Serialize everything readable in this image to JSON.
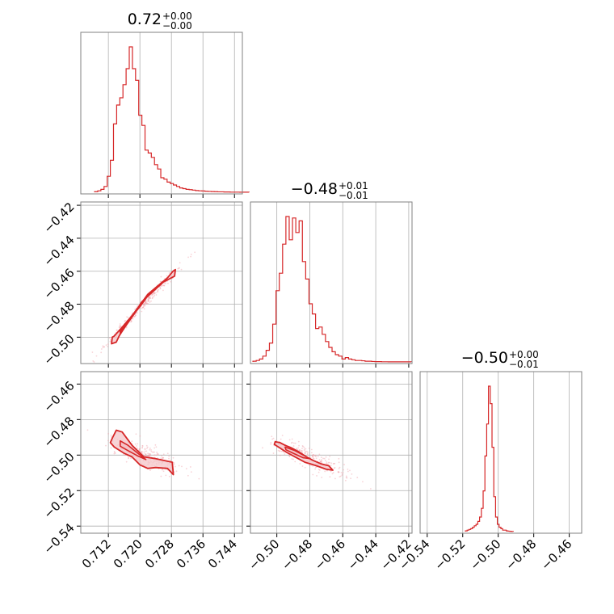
{
  "colors": {
    "accent": "#d62728",
    "fill": "#f4c4c8",
    "grid": "#b0b0b0",
    "frame": "#808080",
    "points": "#f0a0a8"
  },
  "chart_data": {
    "type": "corner",
    "grid": true,
    "parameters": [
      {
        "title_main": "0.72",
        "title_plus": "+0.00",
        "title_minus": "−0.00",
        "range": [
          0.705,
          0.746
        ],
        "ticks": [
          0.712,
          0.72,
          0.728,
          0.736,
          0.744
        ],
        "tick_labels": [
          "0.712",
          "0.720",
          "0.728",
          "0.736",
          "0.744"
        ]
      },
      {
        "title_main": "−0.48",
        "title_plus": "+0.01",
        "title_minus": "−0.01",
        "range": [
          -0.516,
          -0.418
        ],
        "ticks": [
          -0.5,
          -0.48,
          -0.46,
          -0.44,
          -0.42
        ],
        "tick_labels": [
          "−0.50",
          "−0.48",
          "−0.46",
          "−0.44",
          "−0.42"
        ]
      },
      {
        "title_main": "−0.50",
        "title_plus": "+0.00",
        "title_minus": "−0.01",
        "range": [
          -0.544,
          -0.453
        ],
        "ticks": [
          -0.54,
          -0.52,
          -0.5,
          -0.48,
          -0.46
        ],
        "tick_labels": [
          "−0.54",
          "−0.52",
          "−0.50",
          "−0.48",
          "−0.46"
        ]
      }
    ],
    "histograms": [
      {
        "param": 0,
        "bin_start": 0.7085,
        "bin_width": 0.0008,
        "counts": [
          0.4,
          1,
          2,
          4,
          11,
          22,
          47,
          60,
          65,
          74,
          85,
          100,
          85,
          77,
          53,
          46,
          29,
          27,
          24,
          19,
          16,
          10,
          9,
          7,
          6,
          5,
          4,
          3,
          2.5,
          2,
          1.8,
          1.5,
          1.2,
          1,
          0.9,
          0.7,
          0.6,
          0.5,
          0.4,
          0.3,
          0.3,
          0.2,
          0.2,
          0.1,
          0.1,
          0.1,
          0.05,
          0.05,
          0.05
        ]
      },
      {
        "param": 1,
        "bin_start": -0.5145,
        "bin_width": 0.002,
        "counts": [
          0.5,
          1,
          2,
          4,
          8,
          13,
          26,
          49,
          61,
          81,
          100,
          84,
          99,
          89,
          97,
          69,
          57,
          40,
          33,
          23,
          24,
          19,
          14,
          10,
          7,
          5,
          4,
          2,
          3,
          2,
          1.5,
          1,
          1,
          0.8,
          0.5,
          0.5,
          0.3,
          0.2,
          0.2,
          0.1,
          0.1,
          0.05,
          0.05,
          0.05,
          0.05,
          0.05,
          0.05,
          0.05
        ]
      },
      {
        "param": 2,
        "bin_start": -0.5185,
        "bin_width": 0.001,
        "counts": [
          0.5,
          1,
          1.5,
          2,
          3,
          4,
          5,
          7,
          10,
          16,
          28,
          52,
          74,
          100,
          88,
          58,
          24,
          10,
          5,
          3,
          2,
          1,
          1,
          0.5,
          0.3,
          0.2,
          0.1
        ]
      }
    ],
    "pair_panels": [
      {
        "x_param": 0,
        "y_param": 1,
        "outer_contour": [
          [
            0.7134,
            -0.4995
          ],
          [
            0.7155,
            -0.494
          ],
          [
            0.718,
            -0.487
          ],
          [
            0.72,
            -0.4805
          ],
          [
            0.722,
            -0.474
          ],
          [
            0.725,
            -0.468
          ],
          [
            0.727,
            -0.464
          ],
          [
            0.7284,
            -0.46
          ],
          [
            0.729,
            -0.459
          ],
          [
            0.7288,
            -0.463
          ],
          [
            0.726,
            -0.4665
          ],
          [
            0.723,
            -0.473
          ],
          [
            0.7205,
            -0.4785
          ],
          [
            0.7185,
            -0.486
          ],
          [
            0.7163,
            -0.4935
          ],
          [
            0.7148,
            -0.499
          ],
          [
            0.714,
            -0.503
          ],
          [
            0.7128,
            -0.504
          ],
          [
            0.713,
            -0.5
          ]
        ],
        "inner_contour": [
          [
            0.715,
            -0.496
          ],
          [
            0.717,
            -0.49
          ],
          [
            0.719,
            -0.484
          ],
          [
            0.7212,
            -0.477
          ],
          [
            0.723,
            -0.472
          ],
          [
            0.722,
            -0.475
          ],
          [
            0.72,
            -0.4815
          ],
          [
            0.7178,
            -0.488
          ],
          [
            0.716,
            -0.494
          ],
          [
            0.715,
            -0.4975
          ]
        ],
        "scatter_center": [
          0.719,
          -0.485
        ],
        "scatter_direction": [
          0.008,
          0.02
        ],
        "scatter_spread": 0.004
      },
      {
        "x_param": 0,
        "y_param": 2,
        "outer_contour": [
          [
            0.713,
            -0.4905
          ],
          [
            0.714,
            -0.486
          ],
          [
            0.7155,
            -0.487
          ],
          [
            0.718,
            -0.4945
          ],
          [
            0.721,
            -0.501
          ],
          [
            0.724,
            -0.502
          ],
          [
            0.7282,
            -0.504
          ],
          [
            0.7285,
            -0.511
          ],
          [
            0.727,
            -0.5075
          ],
          [
            0.724,
            -0.507
          ],
          [
            0.722,
            -0.5075
          ],
          [
            0.72,
            -0.5055
          ],
          [
            0.718,
            -0.501
          ],
          [
            0.716,
            -0.499
          ],
          [
            0.7135,
            -0.4955
          ],
          [
            0.7125,
            -0.493
          ]
        ],
        "inner_contour": [
          [
            0.715,
            -0.492
          ],
          [
            0.717,
            -0.4945
          ],
          [
            0.7195,
            -0.499
          ],
          [
            0.7215,
            -0.5025
          ],
          [
            0.7195,
            -0.5005
          ],
          [
            0.717,
            -0.4975
          ],
          [
            0.715,
            -0.495
          ]
        ],
        "scatter_center": [
          0.72,
          -0.499
        ],
        "scatter_direction": [
          0.008,
          -0.007
        ],
        "scatter_spread": 0.003
      },
      {
        "x_param": 1,
        "y_param": 2,
        "outer_contour": [
          [
            -0.501,
            -0.4925
          ],
          [
            -0.498,
            -0.493
          ],
          [
            -0.495,
            -0.4945
          ],
          [
            -0.491,
            -0.496
          ],
          [
            -0.487,
            -0.498
          ],
          [
            -0.482,
            -0.501
          ],
          [
            -0.478,
            -0.503
          ],
          [
            -0.473,
            -0.505
          ],
          [
            -0.4685,
            -0.506
          ],
          [
            -0.466,
            -0.5085
          ],
          [
            -0.47,
            -0.508
          ],
          [
            -0.476,
            -0.506
          ],
          [
            -0.483,
            -0.504
          ],
          [
            -0.489,
            -0.501
          ],
          [
            -0.494,
            -0.4985
          ],
          [
            -0.499,
            -0.4955
          ],
          [
            -0.5015,
            -0.494
          ]
        ],
        "inner_contour": [
          [
            -0.495,
            -0.4955
          ],
          [
            -0.489,
            -0.4975
          ],
          [
            -0.484,
            -0.5
          ],
          [
            -0.48,
            -0.502
          ],
          [
            -0.484,
            -0.5015
          ],
          [
            -0.49,
            -0.499
          ],
          [
            -0.4945,
            -0.497
          ]
        ],
        "scatter_center": [
          -0.482,
          -0.501
        ],
        "scatter_direction": [
          0.02,
          -0.008
        ],
        "scatter_spread": 0.003
      }
    ]
  }
}
